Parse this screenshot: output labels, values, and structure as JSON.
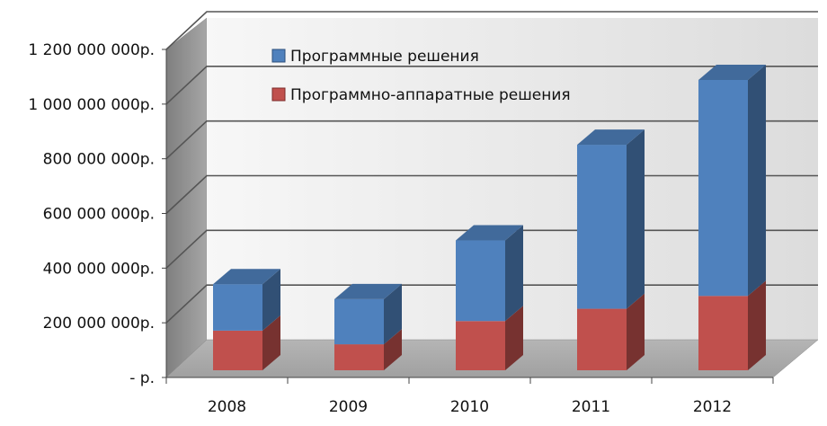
{
  "chart_data": {
    "type": "bar",
    "stacked": true,
    "three_d": true,
    "categories": [
      "2008",
      "2009",
      "2010",
      "2011",
      "2012"
    ],
    "series": [
      {
        "name": "Программно-аппаратные решения",
        "values": [
          145000000,
          95000000,
          180000000,
          225000000,
          272000000
        ],
        "color": "#C0504D"
      },
      {
        "name": "Программные решения",
        "values": [
          170000000,
          165000000,
          295000000,
          600000000,
          790000000
        ],
        "color": "#4F81BD"
      }
    ],
    "y_ticks": [
      {
        "value": 0,
        "label": "-  р."
      },
      {
        "value": 200000000,
        "label": "200 000 000р."
      },
      {
        "value": 400000000,
        "label": "400 000 000р."
      },
      {
        "value": 600000000,
        "label": "600 000 000р."
      },
      {
        "value": 800000000,
        "label": "800 000 000р."
      },
      {
        "value": 1000000000,
        "label": "1 000 000 000р."
      },
      {
        "value": 1200000000,
        "label": "1 200 000 000р."
      }
    ],
    "ylim": [
      0,
      1200000000
    ],
    "grid": true,
    "legend_position": "top-left",
    "legend": [
      "Программные решения",
      "Программно-аппаратные решения"
    ]
  }
}
